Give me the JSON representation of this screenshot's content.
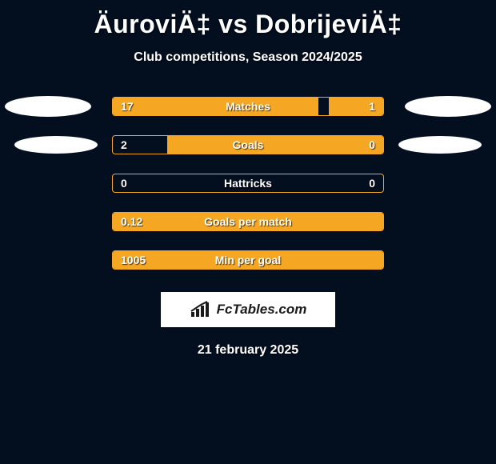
{
  "colors": {
    "background": "#030e1f",
    "accent": "#f5a623",
    "text": "#ffffff",
    "logo_bg": "#ffffff",
    "logo_text": "#1a1a1a"
  },
  "title": "ÄuroviÄ‡ vs DobrijeviÄ‡",
  "subtitle": "Club competitions, Season 2024/2025",
  "rows": [
    {
      "label": "Matches",
      "left_value": "17",
      "right_value": "1",
      "left_fill_pct": 76,
      "right_fill_pct": 20,
      "show_ellipses": true,
      "ellipse_variant": "row1"
    },
    {
      "label": "Goals",
      "left_value": "2",
      "right_value": "0",
      "left_fill_pct": 0,
      "right_fill_pct": 80,
      "show_ellipses": true,
      "ellipse_variant": "row2"
    },
    {
      "label": "Hattricks",
      "left_value": "0",
      "right_value": "0",
      "left_fill_pct": 0,
      "right_fill_pct": 0,
      "show_ellipses": false,
      "ellipse_variant": ""
    },
    {
      "label": "Goals per match",
      "left_value": "0.12",
      "right_value": "",
      "left_fill_pct": 100,
      "right_fill_pct": 0,
      "show_ellipses": false,
      "ellipse_variant": ""
    },
    {
      "label": "Min per goal",
      "left_value": "1005",
      "right_value": "",
      "left_fill_pct": 100,
      "right_fill_pct": 0,
      "show_ellipses": false,
      "ellipse_variant": ""
    }
  ],
  "logo_text": "FcTables.com",
  "date": "21 february 2025"
}
